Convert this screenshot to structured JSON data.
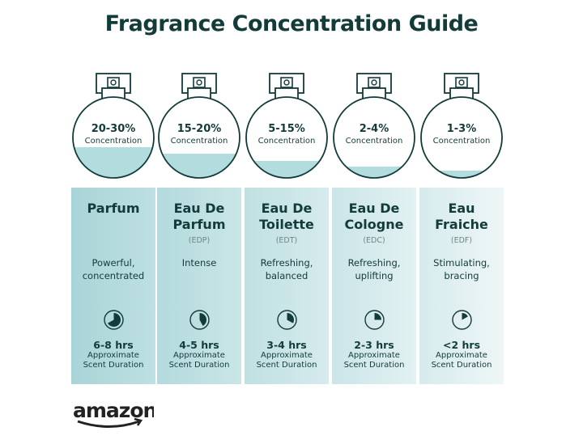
{
  "title": "Fragrance Concentration Guide",
  "concentration_label": "Concentration",
  "duration_label_1": "Approximate",
  "duration_label_2": "Scent Duration",
  "colors": {
    "text": "#123b3a",
    "liquid": "#b3dcdf",
    "panel_start": "#a9d4d7",
    "panel_end": "#eef6f7"
  },
  "types": [
    {
      "percent": "20-30%",
      "fill": 0.38,
      "name1": "Parfum",
      "name2": "",
      "abbr": "",
      "desc1": "Powerful,",
      "desc2": "concentrated",
      "hours": "6-8 hrs",
      "clock_fraction": 0.67
    },
    {
      "percent": "15-20%",
      "fill": 0.3,
      "name1": "Eau De",
      "name2": "Parfum",
      "abbr": "(EDP)",
      "desc1": "Intense",
      "desc2": "",
      "hours": "4-5 hrs",
      "clock_fraction": 0.42
    },
    {
      "percent": "5-15%",
      "fill": 0.21,
      "name1": "Eau De",
      "name2": "Toilette",
      "abbr": "(EDT)",
      "desc1": "Refreshing,",
      "desc2": "balanced",
      "hours": "3-4 hrs",
      "clock_fraction": 0.33
    },
    {
      "percent": "2-4%",
      "fill": 0.14,
      "name1": "Eau De",
      "name2": "Cologne",
      "abbr": "(EDC)",
      "desc1": "Refreshing,",
      "desc2": "uplifting",
      "hours": "2-3 hrs",
      "clock_fraction": 0.25
    },
    {
      "percent": "1-3%",
      "fill": 0.09,
      "name1": "Eau",
      "name2": "Fraiche",
      "abbr": "(EDF)",
      "desc1": "Stimulating,",
      "desc2": "bracing",
      "hours": "<2 hrs",
      "clock_fraction": 0.17
    }
  ],
  "logo": "amazon"
}
